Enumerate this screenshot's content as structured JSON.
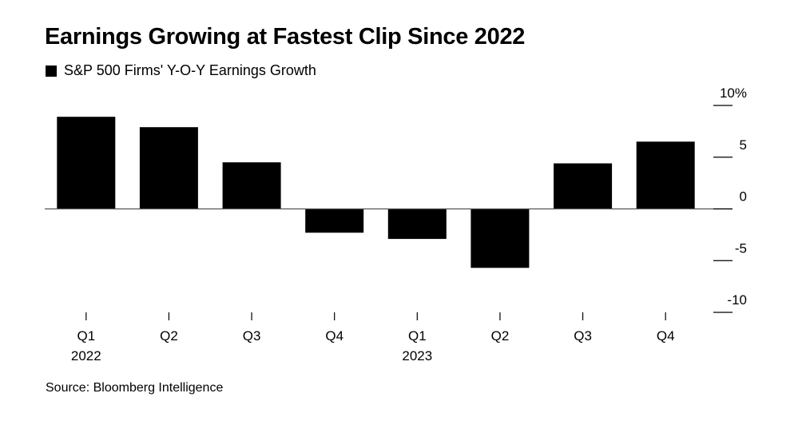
{
  "title": "Earnings Growing at Fastest Clip Since 2022",
  "legend": {
    "label": "S&P 500 Firms' Y-O-Y Earnings Growth",
    "color": "#000000"
  },
  "source": "Source: Bloomberg Intelligence",
  "chart_data": {
    "type": "bar",
    "categories": [
      "Q1",
      "Q2",
      "Q3",
      "Q4",
      "Q1",
      "Q2",
      "Q3",
      "Q4"
    ],
    "year_labels": [
      "2022",
      "",
      "",
      "",
      "2023",
      "",
      "",
      ""
    ],
    "series": [
      {
        "values": [
          8.9,
          7.9,
          4.5,
          -2.3,
          -2.9,
          -5.7,
          4.4,
          6.5
        ],
        "color": "#000000"
      }
    ],
    "yticks": [
      {
        "value": 10,
        "label": "10%"
      },
      {
        "value": 5,
        "label": "5"
      },
      {
        "value": 0,
        "label": "0"
      },
      {
        "value": -5,
        "label": "-5"
      },
      {
        "value": -10,
        "label": "-10"
      }
    ],
    "ylim": [
      -10,
      10
    ],
    "axis_position": "right",
    "grid": false
  }
}
